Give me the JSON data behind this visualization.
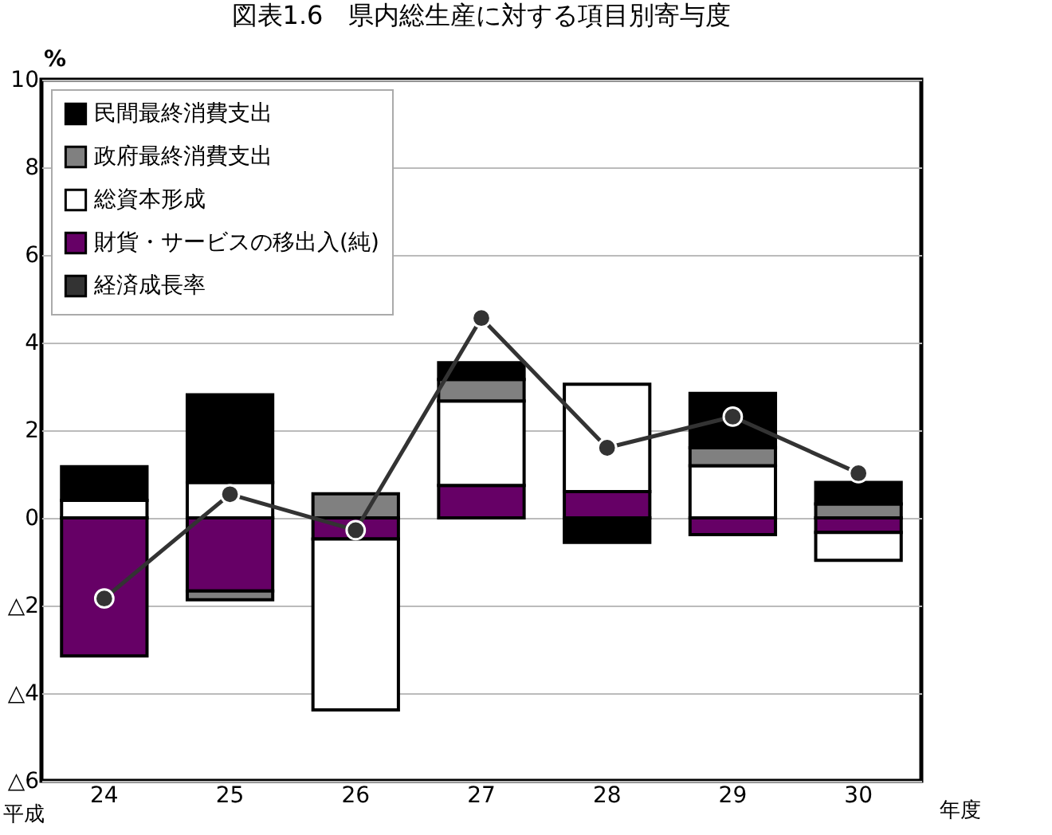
{
  "chart_data": {
    "type": "bar",
    "title": "図表1.6　県内総生産に対する項目別寄与度",
    "ylabel": "%",
    "xlabel": "年度",
    "annotations": [
      "平成"
    ],
    "categories": [
      "24",
      "25",
      "26",
      "27",
      "28",
      "29",
      "30"
    ],
    "stacked": true,
    "series": [
      {
        "name": "財貨・サービスの移出入(純)",
        "color": "#660066",
        "values": [
          -3.15,
          -1.67,
          -0.48,
          0.74,
          0.6,
          -0.38,
          -0.33
        ]
      },
      {
        "name": "総資本形成",
        "color": "#ffffff",
        "values": [
          0.4,
          0.81,
          -3.9,
          1.93,
          2.45,
          1.19,
          -0.64
        ]
      },
      {
        "name": "政府最終消費支出",
        "color": "#808080",
        "values": [
          null,
          -0.2,
          0.55,
          0.49,
          null,
          0.41,
          0.32
        ]
      },
      {
        "name": "民間最終消費支出",
        "color": "#000000",
        "values": [
          0.77,
          2.0,
          null,
          0.38,
          -0.56,
          1.24,
          0.49
        ]
      },
      {
        "name": "経済成長率",
        "type": "line",
        "color": "#333333",
        "values": [
          -1.84,
          0.54,
          -0.28,
          4.56,
          1.6,
          2.31,
          1.02
        ]
      }
    ],
    "ylim": [
      -6,
      10
    ],
    "yticks": [
      {
        "value": -6,
        "label": "△6"
      },
      {
        "value": -4,
        "label": "△4"
      },
      {
        "value": -2,
        "label": "△2"
      },
      0,
      2,
      4,
      6,
      8,
      10
    ],
    "grid": "y",
    "legend": "top left",
    "marker": "circle",
    "line_style": "solid"
  }
}
